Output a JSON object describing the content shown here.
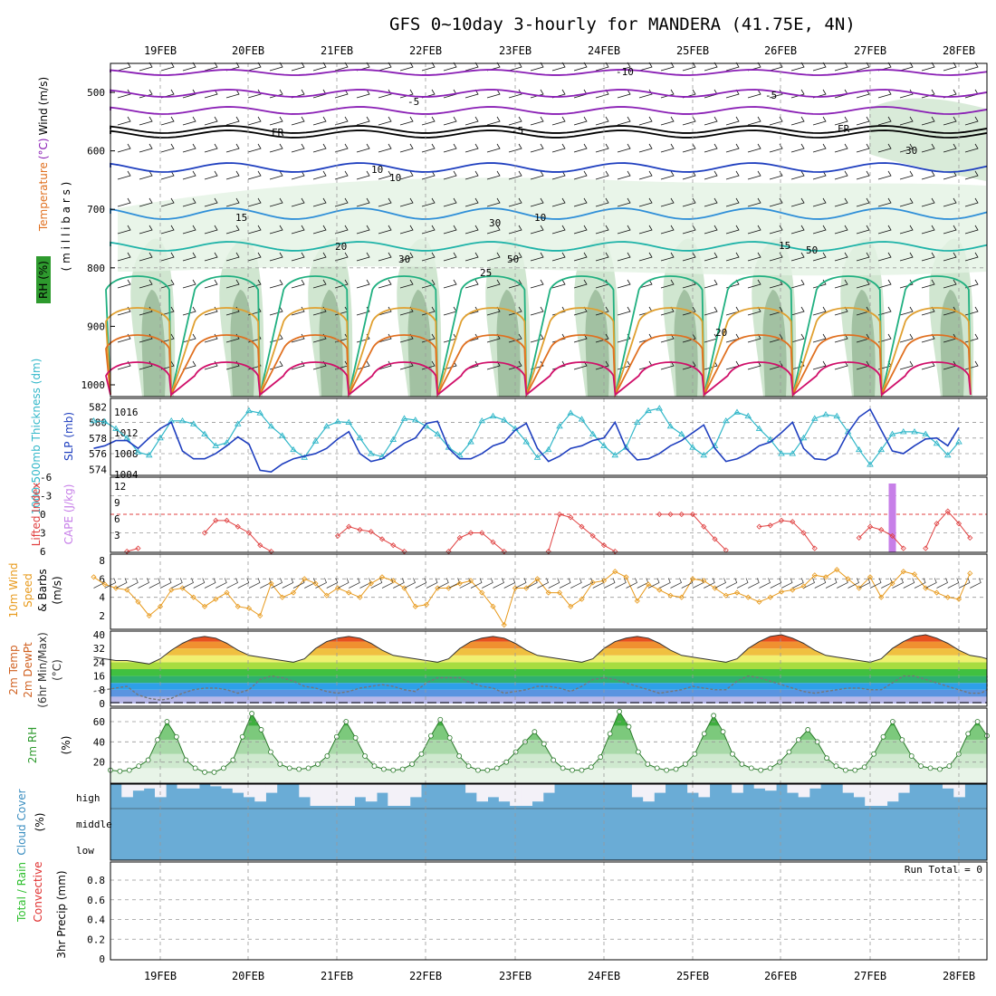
{
  "title": "GFS 0~10day 3-hourly for MANDERA (41.75E, 4N)",
  "dates": [
    "19FEB",
    "20FEB",
    "21FEB",
    "22FEB",
    "23FEB",
    "24FEB",
    "25FEB",
    "26FEB",
    "27FEB",
    "28FEB"
  ],
  "colors": {
    "rh_green": "#2e9a2e",
    "thickness": "#31b7c9",
    "slp": "#1f3fbf",
    "lifted_index": "#e04040",
    "cape": "#c77fe8",
    "wind_speed": "#e89a1c",
    "cloud": "#6aacd6",
    "precip_total": "#2fbf2f",
    "precip_conv": "#e03030"
  },
  "chart_data": [
    {
      "panel": "upper_air",
      "type": "heatmap",
      "ylabel_parts": [
        "Temperature",
        "(°C)",
        "Wind",
        "(m/s)"
      ],
      "ylabel2": "( m i l l i b a r s )",
      "rh_label": "RH (%)",
      "y_ticks": [
        "500",
        "600",
        "700",
        "800",
        "900",
        "1000"
      ],
      "ylim": [
        1000,
        450
      ],
      "isotherm_labels": [
        "-10",
        "-5",
        "FR",
        "-5",
        "10",
        "15",
        "20",
        "25",
        "FR",
        "-5",
        "10",
        "15",
        "20"
      ],
      "rh_labels": [
        "30",
        "30",
        "50",
        "10",
        "30",
        "50"
      ],
      "x_dates": [
        "19FEB",
        "20FEB",
        "21FEB",
        "22FEB",
        "23FEB",
        "24FEB",
        "25FEB",
        "26FEB",
        "27FEB",
        "28FEB"
      ]
    },
    {
      "panel": "thickness_slp",
      "type": "line",
      "ylabel_left": "1000-500mb Thickness (dm)",
      "ylabel_right": "SLP (mb)",
      "left_ticks": [
        "582",
        "580",
        "578",
        "576",
        "574"
      ],
      "right_ticks": [
        "1016",
        "1012",
        "1008",
        "1004"
      ],
      "series": [
        {
          "name": "1000-500mb Thickness (dm)",
          "values": [
            580.2,
            580.1,
            579.2,
            578.0,
            576.2,
            575.8,
            578.0,
            580.2,
            580.2,
            579.8,
            578.5,
            577.0,
            577.4,
            579.8,
            581.5,
            581.2,
            579.5,
            578.3,
            576.5,
            575.5,
            577.6,
            579.5,
            580.1,
            580.0,
            578.0,
            576.0,
            575.6,
            577.8,
            580.5,
            580.3,
            579.5,
            578.5,
            576.8,
            575.8,
            577.5,
            580.2,
            580.8,
            580.3,
            579.2,
            577.5,
            575.5,
            576.5,
            579.5,
            581.2,
            580.4,
            578.5,
            577.0,
            575.8,
            576.8,
            580.0,
            581.5,
            581.8,
            579.5,
            578.5,
            576.8,
            575.8,
            577.0,
            580.2,
            581.3,
            580.8,
            579.2,
            577.8,
            576.0,
            576.0,
            578.0,
            580.5,
            581.0,
            580.8,
            578.8,
            576.5,
            574.6,
            576.5,
            578.5,
            578.8,
            578.8,
            578.5,
            577.3,
            575.8,
            577.5
          ]
        },
        {
          "name": "SLP (mb)",
          "values": [
            1009.0,
            1009.5,
            1010.5,
            1010.5,
            1009.0,
            1011.0,
            1012.8,
            1014.0,
            1008.5,
            1007.0,
            1007.0,
            1008.0,
            1009.5,
            1011.2,
            1009.8,
            1004.8,
            1004.5,
            1006.0,
            1007.0,
            1007.5,
            1008.0,
            1009.0,
            1010.8,
            1012.2,
            1008.0,
            1006.5,
            1007.0,
            1008.5,
            1010.0,
            1011.0,
            1013.8,
            1014.2,
            1009.0,
            1007.0,
            1007.0,
            1008.0,
            1009.5,
            1010.2,
            1012.5,
            1013.8,
            1009.0,
            1006.5,
            1007.5,
            1009.0,
            1009.5,
            1010.5,
            1011.0,
            1014.0,
            1009.0,
            1006.8,
            1007.0,
            1008.0,
            1009.5,
            1010.5,
            1012.0,
            1013.5,
            1009.0,
            1006.5,
            1007.0,
            1008.0,
            1009.5,
            1010.2,
            1012.0,
            1014.0,
            1009.0,
            1007.0,
            1006.8,
            1008.0,
            1012.0,
            1015.0,
            1016.5,
            1012.5,
            1008.5,
            1008.0,
            1009.5,
            1010.8,
            1011.0,
            1009.5,
            1013.0
          ]
        }
      ]
    },
    {
      "panel": "stability",
      "type": "line",
      "ylabel_left": "Lifted Index",
      "ylabel_right": "CAPE (J/kg)",
      "li_ticks": [
        "-6",
        "-3",
        "0",
        "3",
        "6"
      ],
      "cape_ticks": [
        "12",
        "9",
        "6",
        "3"
      ],
      "series": [
        {
          "name": "Lifted Index",
          "values": [
            7.5,
            6.5,
            6.8,
            6.0,
            5.5,
            6.8,
            7.2,
            7.0,
            7.5,
            6.5,
            3.0,
            1.0,
            1.0,
            2.0,
            3.0,
            5.0,
            6.0,
            6.8,
            7.0,
            6.8,
            7.5,
            6.8,
            3.5,
            2.0,
            2.5,
            2.8,
            4.0,
            5.0,
            6.0,
            7.0,
            7.0,
            7.5,
            6.0,
            3.8,
            3.0,
            3.0,
            4.5,
            6.0,
            6.8,
            7.2,
            7.0,
            6.0,
            0.0,
            0.5,
            2.0,
            3.5,
            5.0,
            6.0,
            6.8,
            7.0,
            6.5,
            0.0,
            0.0,
            0.0,
            0.0,
            2.0,
            4.0,
            5.8,
            6.8,
            6.5,
            2.0,
            1.8,
            1.0,
            1.2,
            3.0,
            5.5,
            6.8,
            7.2,
            6.5,
            3.8,
            2.0,
            2.5,
            3.5,
            5.5,
            6.8,
            5.5,
            1.5,
            -0.5,
            1.5,
            3.8
          ]
        },
        {
          "name": "CAPE (J/kg)",
          "values": [
            0,
            0,
            0,
            0,
            0,
            0,
            0,
            0,
            0,
            0,
            0,
            0,
            0,
            0,
            0,
            0,
            0,
            0,
            0,
            0,
            0,
            0,
            0,
            0,
            0,
            0,
            0,
            0,
            0,
            0,
            0,
            0,
            0,
            0,
            0,
            0,
            0,
            0,
            0,
            0,
            0,
            0,
            0,
            0,
            0,
            0,
            0,
            0,
            0,
            0,
            0,
            0,
            0,
            0,
            0,
            0,
            0,
            0,
            0,
            0,
            0,
            0,
            0,
            0,
            0,
            0,
            0,
            0,
            0,
            0,
            0,
            0,
            12.5,
            0,
            0,
            0,
            0,
            0,
            0
          ]
        }
      ]
    },
    {
      "panel": "wind10m",
      "type": "line",
      "ylabel": [
        "10m Wind",
        "Speed",
        "& Barbs",
        "(m/s)"
      ],
      "ticks": [
        "8",
        "6",
        "4",
        "2"
      ],
      "series": [
        {
          "name": "10m Wind Speed",
          "values": [
            6.2,
            5.4,
            5.0,
            4.8,
            3.5,
            2.0,
            3.0,
            4.8,
            5.0,
            4.0,
            3.0,
            3.8,
            4.5,
            3.0,
            2.8,
            2.0,
            5.5,
            4.0,
            4.5,
            6.0,
            5.5,
            4.2,
            5.0,
            4.5,
            4.0,
            5.5,
            6.2,
            5.8,
            5.0,
            3.0,
            3.2,
            5.0,
            5.0,
            5.5,
            5.8,
            4.5,
            3.0,
            1.0,
            5.0,
            5.0,
            6.0,
            4.5,
            4.5,
            3.0,
            3.8,
            5.6,
            5.8,
            6.8,
            6.2,
            3.6,
            5.4,
            4.8,
            4.2,
            4.0,
            6.0,
            5.8,
            5.0,
            4.2,
            4.5,
            4.0,
            3.5,
            4.0,
            4.6,
            4.8,
            5.2,
            6.4,
            6.2,
            7.0,
            6.0,
            5.0,
            6.2,
            4.0,
            5.5,
            6.8,
            6.5,
            5.0,
            4.5,
            4.0,
            3.8,
            6.6
          ]
        }
      ]
    },
    {
      "panel": "temp2m",
      "type": "area",
      "ylabel": [
        "2m Temp",
        "2m DewPt",
        "(6hr Min/Max)",
        "(°C)"
      ],
      "ticks": [
        "40",
        "32",
        "24",
        "16",
        "8",
        "0"
      ],
      "series": [
        {
          "name": "2m Temp",
          "values": [
            27,
            26,
            25,
            25,
            24,
            23,
            26,
            31,
            35,
            38,
            39,
            38,
            35,
            31,
            28,
            27,
            26,
            25,
            24,
            26,
            32,
            36,
            38,
            39,
            38,
            35,
            31,
            28,
            27,
            26,
            25,
            24,
            26,
            32,
            36,
            38,
            39,
            38,
            35,
            31,
            28,
            27,
            26,
            25,
            24,
            26,
            32,
            36,
            38,
            39,
            38,
            35,
            31,
            28,
            27,
            26,
            25,
            24,
            26,
            32,
            36,
            39,
            40,
            38,
            35,
            31,
            28,
            27,
            26,
            25,
            24,
            26,
            32,
            36,
            39,
            40,
            38,
            35,
            31,
            28,
            27,
            26,
            25,
            24
          ]
        },
        {
          "name": "2m DewPt",
          "values": [
            7,
            8,
            9,
            10,
            5,
            3,
            2,
            3,
            6,
            8,
            9,
            9,
            8,
            6,
            8,
            14,
            16,
            15,
            13,
            10,
            9,
            7,
            6,
            7,
            9,
            10,
            11,
            10,
            8,
            7,
            12,
            15,
            15,
            15,
            12,
            10,
            9,
            6,
            7,
            8,
            10,
            10,
            9,
            7,
            10,
            14,
            15,
            14,
            12,
            10,
            8,
            6,
            7,
            8,
            10,
            9,
            8,
            8,
            13,
            16,
            15,
            13,
            11,
            9,
            7,
            6,
            7,
            8,
            9,
            9,
            8,
            8,
            12,
            16,
            16,
            14,
            12,
            10,
            8,
            6,
            6,
            8,
            10,
            12,
            15,
            16
          ]
        }
      ]
    },
    {
      "panel": "rh2m",
      "type": "area",
      "ylabel": [
        "2m RH",
        "(%)"
      ],
      "ticks": [
        "60",
        "40",
        "20"
      ],
      "series": [
        {
          "name": "2m RH",
          "values": [
            12,
            11,
            12,
            16,
            22,
            42,
            60,
            45,
            22,
            14,
            10,
            10,
            14,
            22,
            45,
            68,
            52,
            30,
            18,
            14,
            13,
            14,
            18,
            26,
            45,
            60,
            44,
            26,
            16,
            13,
            12,
            13,
            18,
            28,
            46,
            62,
            44,
            26,
            16,
            12,
            12,
            14,
            20,
            30,
            40,
            50,
            38,
            22,
            14,
            12,
            12,
            15,
            25,
            48,
            70,
            55,
            30,
            18,
            14,
            12,
            13,
            18,
            28,
            48,
            66,
            50,
            28,
            18,
            14,
            12,
            14,
            20,
            30,
            42,
            52,
            40,
            24,
            16,
            12,
            12,
            15,
            28,
            45,
            60,
            42,
            26,
            16,
            14,
            13,
            16,
            28,
            48,
            60,
            46
          ]
        }
      ]
    },
    {
      "panel": "cloud",
      "type": "bar",
      "ylabel": [
        "Cloud Cover",
        "(%)"
      ],
      "levels": [
        "high",
        "middle",
        "low"
      ],
      "series": [
        {
          "name": "high",
          "values": [
            100,
            40,
            70,
            80,
            40,
            100,
            80,
            80,
            100,
            90,
            80,
            60,
            40,
            20,
            60,
            100,
            100,
            40,
            0,
            0,
            0,
            0,
            40,
            20,
            60,
            0,
            0,
            40,
            100,
            100,
            100,
            100,
            60,
            20,
            40,
            20,
            0,
            0,
            20,
            60,
            100,
            100,
            100,
            100,
            100,
            100,
            100,
            40,
            20,
            60,
            100,
            100,
            60,
            40,
            100,
            100,
            60,
            100,
            80,
            70,
            100,
            60,
            40,
            80,
            100,
            100,
            60,
            40,
            0,
            0,
            20,
            60,
            100,
            100,
            100,
            80,
            40,
            100,
            100
          ]
        },
        {
          "name": "middle",
          "values": []
        },
        {
          "name": "low",
          "values": []
        }
      ]
    },
    {
      "panel": "precip3hr",
      "type": "bar",
      "ylabel_left": [
        "Total / Rain",
        "Convective"
      ],
      "ylabel_right": "3hr Precip (mm)",
      "ticks": [
        "0.8",
        "0.6",
        "0.4",
        "0.2",
        "0"
      ],
      "annotation": "Run Total = 0",
      "series": [
        {
          "name": "Total / Rain",
          "values": []
        },
        {
          "name": "Convective",
          "values": []
        }
      ]
    }
  ]
}
